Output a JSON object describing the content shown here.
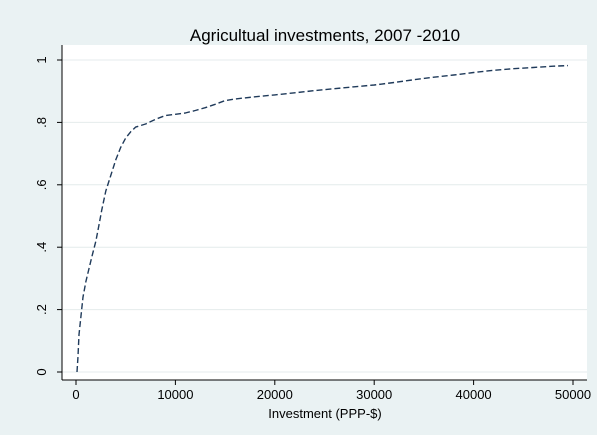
{
  "chart_data": {
    "type": "line",
    "title": "Agricultual investments, 2007 -2010",
    "xlabel": "Investment (PPP-$)",
    "ylabel": "",
    "xlim": [
      0,
      50000
    ],
    "ylim": [
      0,
      1
    ],
    "x_ticks": [
      "0",
      "10000",
      "20000",
      "30000",
      "40000",
      "50000"
    ],
    "y_ticks": [
      "0",
      ".2",
      ".4",
      ".6",
      ".8",
      "1"
    ],
    "grid": true,
    "series": [
      {
        "line_style": "dashed",
        "color": "#1f3a5a",
        "points": [
          [
            100,
            0.0
          ],
          [
            200,
            0.05
          ],
          [
            300,
            0.12
          ],
          [
            500,
            0.18
          ],
          [
            700,
            0.24
          ],
          [
            1000,
            0.29
          ],
          [
            1300,
            0.33
          ],
          [
            1600,
            0.37
          ],
          [
            2000,
            0.42
          ],
          [
            2300,
            0.47
          ],
          [
            2600,
            0.52
          ],
          [
            3000,
            0.58
          ],
          [
            3500,
            0.63
          ],
          [
            4000,
            0.68
          ],
          [
            4500,
            0.72
          ],
          [
            5000,
            0.75
          ],
          [
            5500,
            0.77
          ],
          [
            6000,
            0.785
          ],
          [
            7000,
            0.795
          ],
          [
            8000,
            0.81
          ],
          [
            9000,
            0.822
          ],
          [
            10000,
            0.826
          ],
          [
            11000,
            0.83
          ],
          [
            12000,
            0.838
          ],
          [
            13000,
            0.847
          ],
          [
            14000,
            0.858
          ],
          [
            15000,
            0.87
          ],
          [
            16000,
            0.875
          ],
          [
            18000,
            0.882
          ],
          [
            20000,
            0.888
          ],
          [
            22000,
            0.895
          ],
          [
            24000,
            0.902
          ],
          [
            26000,
            0.908
          ],
          [
            28000,
            0.914
          ],
          [
            30000,
            0.92
          ],
          [
            32000,
            0.928
          ],
          [
            34000,
            0.937
          ],
          [
            36000,
            0.945
          ],
          [
            38000,
            0.952
          ],
          [
            40000,
            0.96
          ],
          [
            42000,
            0.967
          ],
          [
            44000,
            0.972
          ],
          [
            46000,
            0.976
          ],
          [
            48000,
            0.98
          ],
          [
            49500,
            0.982
          ]
        ]
      }
    ]
  }
}
